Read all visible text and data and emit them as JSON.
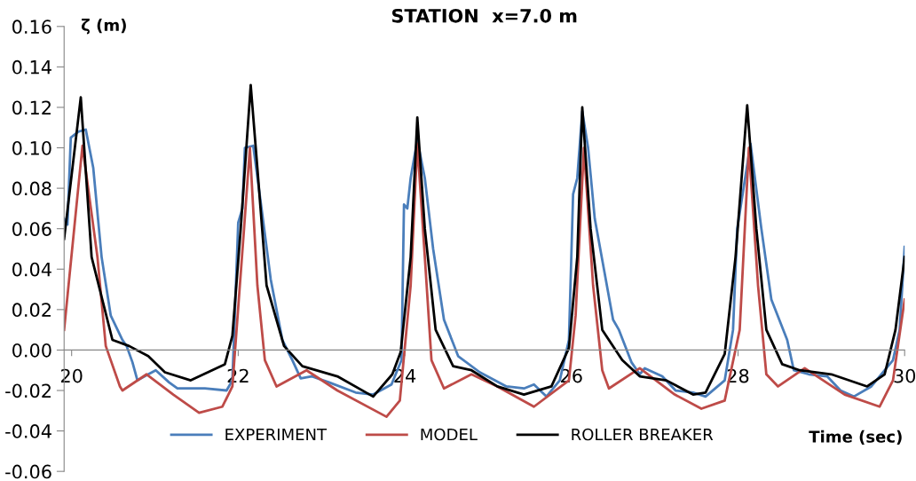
{
  "chart_data": {
    "type": "line",
    "title": "STATION  x=7.0 m",
    "xlabel": "Time (sec)",
    "ylabel": "ζ (m)",
    "xlim": [
      19.91,
      30
    ],
    "xticks": [
      20,
      22,
      24,
      26,
      28,
      30
    ],
    "ylim": [
      -0.06,
      0.16
    ],
    "yticks": [
      {
        "value": -0.06,
        "label": "-0.06"
      },
      {
        "value": -0.04,
        "label": "-0.04"
      },
      {
        "value": -0.02,
        "label": "-0.02"
      },
      {
        "value": 0,
        "label": "0.00"
      },
      {
        "value": 0.02,
        "label": "0.02"
      },
      {
        "value": 0.04,
        "label": "0.04"
      },
      {
        "value": 0.06,
        "label": "0.06"
      },
      {
        "value": 0.08,
        "label": "0.08"
      },
      {
        "value": 0.1,
        "label": "0.10"
      },
      {
        "value": 0.12,
        "label": "0.12"
      },
      {
        "value": 0.14,
        "label": "0.14"
      },
      {
        "value": 0.16,
        "label": "0.16"
      }
    ],
    "grid": false,
    "legend": "bottom",
    "marker": "none",
    "line_style": "solid",
    "series": [
      {
        "name": "EXPERIMENT",
        "color": "#4a7ebb",
        "x": [
          19.91,
          19.95,
          19.99,
          20.08,
          20.17,
          20.26,
          20.36,
          20.47,
          20.61,
          20.66,
          20.73,
          20.79,
          20.92,
          21.01,
          21.17,
          21.27,
          21.6,
          21.86,
          21.93,
          22.0,
          22.05,
          22.08,
          22.18,
          22.28,
          22.39,
          22.53,
          22.65,
          22.75,
          22.88,
          23.09,
          23.41,
          23.62,
          23.84,
          23.96,
          23.99,
          24.03,
          24.07,
          24.15,
          24.24,
          24.34,
          24.47,
          24.64,
          24.9,
          25.22,
          25.43,
          25.55,
          25.7,
          25.86,
          25.97,
          26.02,
          26.07,
          26.13,
          26.2,
          26.28,
          26.39,
          26.5,
          26.57,
          26.72,
          26.82,
          26.88,
          27.09,
          27.25,
          27.46,
          27.61,
          27.84,
          27.94,
          27.99,
          28.15,
          28.28,
          28.4,
          28.59,
          28.67,
          28.85,
          29.07,
          29.23,
          29.39,
          29.6,
          29.86,
          29.94,
          30.0
        ],
        "values": [
          0.065,
          0.062,
          0.105,
          0.108,
          0.109,
          0.09,
          0.046,
          0.017,
          0.005,
          0.002,
          -0.006,
          -0.015,
          -0.012,
          -0.01,
          -0.016,
          -0.019,
          -0.019,
          -0.02,
          -0.015,
          0.063,
          0.07,
          0.1,
          0.101,
          0.07,
          0.035,
          0.005,
          -0.005,
          -0.014,
          -0.013,
          -0.016,
          -0.021,
          -0.022,
          -0.017,
          -0.005,
          0.072,
          0.07,
          0.085,
          0.104,
          0.085,
          0.05,
          0.015,
          -0.003,
          -0.011,
          -0.018,
          -0.019,
          -0.017,
          -0.023,
          -0.015,
          0.005,
          0.077,
          0.085,
          0.118,
          0.1,
          0.065,
          0.04,
          0.015,
          0.01,
          -0.006,
          -0.012,
          -0.009,
          -0.013,
          -0.02,
          -0.021,
          -0.023,
          -0.015,
          0.01,
          0.06,
          0.102,
          0.06,
          0.025,
          0.005,
          -0.01,
          -0.012,
          -0.013,
          -0.02,
          -0.023,
          -0.018,
          -0.005,
          0.01,
          0.051
        ]
      },
      {
        "name": "MODEL",
        "color": "#be4b48",
        "x": [
          19.91,
          20.13,
          20.31,
          20.41,
          20.58,
          20.61,
          20.9,
          21.22,
          21.53,
          21.81,
          21.93,
          22.07,
          22.14,
          22.23,
          22.32,
          22.46,
          22.82,
          23.19,
          23.78,
          23.94,
          24.07,
          24.15,
          24.24,
          24.32,
          24.47,
          24.8,
          25.11,
          25.55,
          25.97,
          26.05,
          26.15,
          26.26,
          26.37,
          26.45,
          26.82,
          27.24,
          27.56,
          27.84,
          28.02,
          28.13,
          28.24,
          28.34,
          28.48,
          28.8,
          29.28,
          29.7,
          29.86,
          30.0
        ],
        "values": [
          0.01,
          0.101,
          0.046,
          0.002,
          -0.018,
          -0.02,
          -0.012,
          -0.022,
          -0.031,
          -0.028,
          -0.018,
          0.06,
          0.1,
          0.032,
          -0.005,
          -0.018,
          -0.01,
          -0.02,
          -0.033,
          -0.025,
          0.032,
          0.102,
          0.046,
          -0.005,
          -0.019,
          -0.012,
          -0.018,
          -0.028,
          -0.015,
          0.017,
          0.1,
          0.032,
          -0.01,
          -0.019,
          -0.009,
          -0.022,
          -0.029,
          -0.025,
          0.01,
          0.1,
          0.032,
          -0.012,
          -0.018,
          -0.009,
          -0.022,
          -0.028,
          -0.015,
          0.025
        ]
      },
      {
        "name": "ROLLER BREAKER",
        "color": "#000000",
        "x": [
          19.91,
          20.11,
          20.24,
          20.49,
          20.69,
          20.92,
          21.12,
          21.43,
          21.84,
          21.93,
          22.03,
          22.15,
          22.23,
          22.34,
          22.55,
          22.77,
          23.19,
          23.62,
          23.85,
          23.95,
          24.07,
          24.15,
          24.24,
          24.37,
          24.58,
          24.8,
          25.11,
          25.43,
          25.76,
          25.97,
          26.07,
          26.13,
          26.23,
          26.37,
          26.61,
          26.82,
          27.14,
          27.46,
          27.61,
          27.84,
          27.97,
          28.11,
          28.22,
          28.34,
          28.53,
          28.74,
          29.12,
          29.55,
          29.76,
          29.89,
          30.0
        ],
        "values": [
          0.055,
          0.125,
          0.046,
          0.005,
          0.002,
          -0.003,
          -0.011,
          -0.015,
          -0.007,
          0.007,
          0.06,
          0.131,
          0.09,
          0.032,
          0.002,
          -0.008,
          -0.013,
          -0.023,
          -0.012,
          -0.001,
          0.046,
          0.115,
          0.06,
          0.01,
          -0.008,
          -0.01,
          -0.018,
          -0.022,
          -0.018,
          0.001,
          0.046,
          0.12,
          0.06,
          0.01,
          -0.005,
          -0.013,
          -0.015,
          -0.022,
          -0.021,
          -0.002,
          0.046,
          0.121,
          0.06,
          0.01,
          -0.007,
          -0.01,
          -0.012,
          -0.018,
          -0.012,
          0.01,
          0.046
        ]
      }
    ]
  }
}
